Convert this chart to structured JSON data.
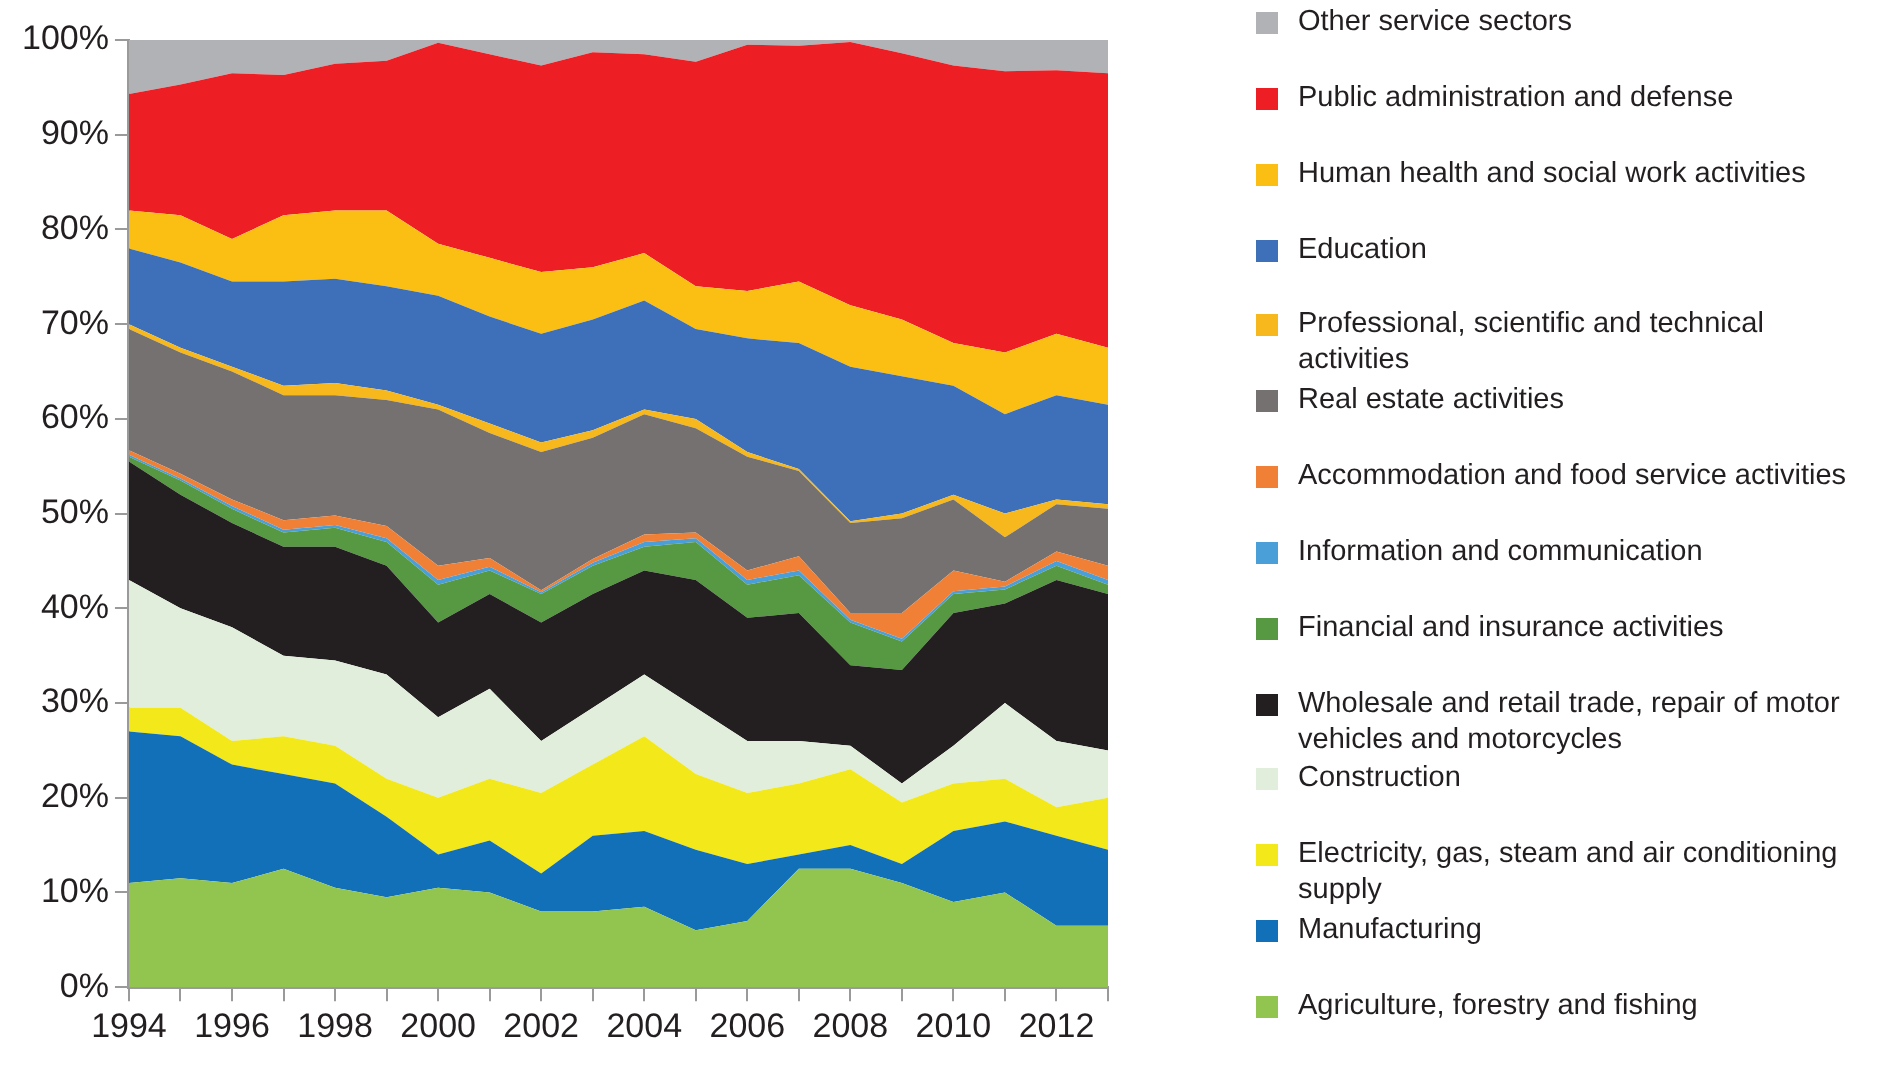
{
  "chart_data": {
    "type": "area",
    "stacked": true,
    "legend": "right",
    "x": [
      1994,
      1995,
      1996,
      1997,
      1998,
      1999,
      2000,
      2001,
      2002,
      2003,
      2004,
      2005,
      2006,
      2007,
      2008,
      2009,
      2010,
      2011,
      2012,
      2013
    ],
    "xlim": [
      1994,
      2013
    ],
    "xticks": [
      1994,
      {
        "value": 1995,
        "label": null
      },
      1996,
      {
        "value": 1997,
        "label": null
      },
      1998,
      {
        "value": 1999,
        "label": null
      },
      2000,
      {
        "value": 2001,
        "label": null
      },
      2002,
      {
        "value": 2003,
        "label": null
      },
      2004,
      {
        "value": 2005,
        "label": null
      },
      2006,
      {
        "value": 2007,
        "label": null
      },
      2008,
      {
        "value": 2009,
        "label": null
      },
      2010,
      {
        "value": 2011,
        "label": null
      },
      2012,
      {
        "value": 2013,
        "label": null
      }
    ],
    "ylim": [
      0,
      100
    ],
    "yticks": [
      {
        "value": 0,
        "label": "0%"
      },
      {
        "value": 10,
        "label": "10%"
      },
      {
        "value": 20,
        "label": "20%"
      },
      {
        "value": 30,
        "label": "30%"
      },
      {
        "value": 40,
        "label": "40%"
      },
      {
        "value": 50,
        "label": "50%"
      },
      {
        "value": 60,
        "label": "60%"
      },
      {
        "value": 70,
        "label": "70%"
      },
      {
        "value": 80,
        "label": "80%"
      },
      {
        "value": 90,
        "label": "90%"
      },
      {
        "value": 100,
        "label": "100%"
      }
    ],
    "series": [
      {
        "name": "Agriculture, forestry and fishing",
        "color": "#92c550",
        "values": [
          11,
          11.5,
          11,
          12.5,
          10.5,
          9.5,
          10.5,
          10,
          8,
          8,
          8.5,
          6,
          7,
          12.5,
          12.5,
          11,
          9,
          10,
          6.5,
          6.5
        ]
      },
      {
        "name": "Manufacturing",
        "color": "#1170b8",
        "values": [
          16,
          15,
          12.5,
          10,
          11,
          8.5,
          3.5,
          5.5,
          4,
          8,
          8,
          8.5,
          6,
          1.5,
          2.5,
          2,
          7.5,
          7.5,
          9.5,
          8
        ]
      },
      {
        "name": "Electricity, gas, steam and air conditioning supply",
        "color": "#f2e81a",
        "values": [
          2.5,
          3,
          2.5,
          4,
          4,
          4,
          6,
          6.5,
          8.5,
          7.5,
          10,
          8,
          7.5,
          7.5,
          8,
          6.5,
          5,
          4.5,
          3,
          5.5
        ]
      },
      {
        "name": "Construction",
        "color": "#e1eedb",
        "values": [
          13.5,
          10.5,
          12,
          8.5,
          9,
          11,
          8.5,
          9.5,
          5.5,
          6,
          6.5,
          7,
          5.5,
          4.5,
          2.5,
          2,
          4,
          8,
          7,
          5
        ]
      },
      {
        "name": "Wholesale and retail trade, repair of motor vehicles and motorcycles",
        "color": "#231f20",
        "values": [
          12.5,
          12,
          11,
          11.5,
          12,
          11.5,
          10,
          10,
          12.5,
          12,
          11,
          13.5,
          13,
          13.5,
          8.5,
          12,
          14,
          10.5,
          17,
          16.5
        ]
      },
      {
        "name": "Financial and insurance activities",
        "color": "#579843",
        "values": [
          0.5,
          1.5,
          1.5,
          1.5,
          2,
          2.5,
          4,
          2.5,
          3,
          3,
          2.5,
          4,
          3.5,
          4,
          4.5,
          3,
          2,
          1.5,
          1.5,
          1
        ]
      },
      {
        "name": "Information and communication",
        "color": "#4a9fd8",
        "values": [
          0.2,
          0.2,
          0.3,
          0.3,
          0.3,
          0.4,
          0.5,
          0.4,
          0.2,
          0.3,
          0.5,
          0.4,
          0.5,
          0.5,
          0.3,
          0.3,
          0.3,
          0.3,
          0.5,
          0.5
        ]
      },
      {
        "name": "Accommodation and food service activities",
        "color": "#f08035",
        "values": [
          0.5,
          0.5,
          0.7,
          1,
          1,
          1.3,
          1.5,
          0.9,
          0.2,
          0.4,
          0.8,
          0.6,
          1,
          1.5,
          0.7,
          2.7,
          2.2,
          0.5,
          1,
          1.5
        ]
      },
      {
        "name": "Real estate activities",
        "color": "#767171",
        "values": [
          12.8,
          12.8,
          13.5,
          13.2,
          12.7,
          13.3,
          16.5,
          13.2,
          14.6,
          12.8,
          12.7,
          11,
          12,
          9,
          9.5,
          10,
          7.5,
          4.7,
          5,
          6
        ]
      },
      {
        "name": "Professional, scientific and technical activities",
        "color": "#f6b81c",
        "values": [
          0.5,
          0.5,
          0.5,
          1,
          1.3,
          1,
          0.5,
          1,
          1,
          0.8,
          0.5,
          1,
          0.5,
          0.2,
          0.2,
          0.5,
          0.5,
          2.5,
          0.5,
          0.5
        ]
      },
      {
        "name": "Education",
        "color": "#3d70b8",
        "values": [
          8,
          9,
          9,
          11,
          11,
          11,
          11.5,
          11.3,
          11.5,
          11.7,
          11.5,
          9.5,
          12,
          13.3,
          16.3,
          14.5,
          11.5,
          10.5,
          11,
          10.5
        ]
      },
      {
        "name": "Human health and social work activities",
        "color": "#fbbf14",
        "values": [
          4,
          5,
          4.5,
          7,
          7.2,
          8,
          5.5,
          6.2,
          6.5,
          5.5,
          5,
          4.5,
          5,
          6.5,
          6.5,
          6,
          4.5,
          6.5,
          6.5,
          6
        ]
      },
      {
        "name": "Public administration and defense",
        "color": "#ee1f24",
        "values": [
          12.3,
          13.8,
          17.5,
          14.8,
          15.5,
          15.8,
          21.2,
          21.5,
          21.8,
          22.7,
          21,
          23.7,
          26,
          24.9,
          27.8,
          28.1,
          29.3,
          29.7,
          27.8,
          29
        ]
      },
      {
        "name": "Other service sectors",
        "color": "#b1b2b6",
        "values": [
          5.7,
          4.7,
          3.5,
          3.7,
          2.5,
          2.2,
          0.3,
          1.5,
          2.7,
          1.3,
          1.5,
          2.3,
          0.5,
          0.6,
          0.2,
          1.4,
          2.7,
          3.3,
          3.2,
          3.5
        ]
      }
    ]
  }
}
